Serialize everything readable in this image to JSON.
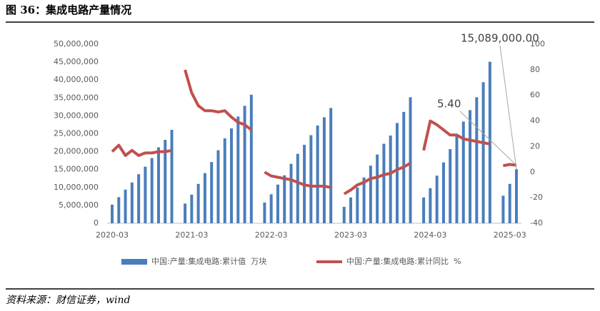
{
  "chart_data": {
    "type": "bar",
    "title": "图 36：集成电路产量情况",
    "source": "资料来源：财信证券，wind",
    "categories": [
      "2020-03",
      null,
      null,
      null,
      null,
      null,
      null,
      null,
      null,
      null,
      null,
      null,
      "2021-03",
      null,
      null,
      null,
      null,
      null,
      null,
      null,
      null,
      null,
      null,
      null,
      "2022-03",
      null,
      null,
      null,
      null,
      null,
      null,
      null,
      null,
      null,
      null,
      null,
      "2023-03",
      null,
      null,
      null,
      null,
      null,
      null,
      null,
      null,
      null,
      null,
      null,
      "2024-03",
      null,
      null,
      null,
      null,
      null,
      null,
      null,
      null,
      null,
      null,
      null,
      "2025-03",
      null
    ],
    "series": [
      {
        "name": "中国:产量:集成电路:累计值  万块",
        "color": "#4a7ebb",
        "type": "bar",
        "values": [
          5200000,
          7300000,
          9400000,
          11400000,
          13700000,
          15800000,
          18200000,
          21200000,
          23300000,
          26100000,
          null,
          5500000,
          8000000,
          11000000,
          14000000,
          17100000,
          20400000,
          23700000,
          26500000,
          29800000,
          32800000,
          35900000,
          null,
          5800000,
          8100000,
          10800000,
          13400000,
          16600000,
          19400000,
          21900000,
          24600000,
          27300000,
          29600000,
          32200000,
          null,
          4600000,
          7200000,
          10000000,
          12800000,
          16100000,
          19200000,
          22200000,
          24500000,
          28000000,
          31100000,
          35200000,
          null,
          7200000,
          9800000,
          13300000,
          17000000,
          20700000,
          24500000,
          28400000,
          31600000,
          35200000,
          39400000,
          45100000,
          null,
          7700000,
          11000000,
          15089000
        ],
        "value_labels": [
          null,
          null,
          null,
          null,
          null,
          null,
          null,
          null,
          null,
          null,
          null,
          null,
          null,
          null,
          null,
          null,
          null,
          null,
          null,
          null,
          null,
          null,
          null,
          null,
          null,
          null,
          null,
          null,
          null,
          null,
          null,
          null,
          null,
          null,
          null,
          null,
          null,
          null,
          null,
          null,
          null,
          null,
          null,
          null,
          null,
          null,
          null,
          null,
          null,
          null,
          null,
          null,
          null,
          null,
          null,
          null,
          null,
          null,
          null,
          null,
          null,
          "15,089,000.00"
        ]
      },
      {
        "name": "中国:产量:集成电路:累计同比  %",
        "color": "#c0504d",
        "type": "line",
        "axis": "y2",
        "values": [
          16,
          21,
          13,
          17,
          13,
          15,
          15,
          16,
          16,
          17,
          null,
          80,
          62,
          52,
          48,
          48,
          47,
          48,
          43,
          39,
          37,
          33,
          null,
          0,
          -3,
          -4,
          -5,
          -6,
          -8,
          -10,
          -11,
          -11,
          -11,
          -12,
          null,
          -17,
          -14,
          -10,
          -8,
          -5,
          -4,
          -2,
          -1,
          2,
          4,
          7,
          null,
          17,
          40,
          37,
          33,
          29,
          29,
          26,
          25,
          24,
          23,
          22,
          null,
          5,
          6,
          5.4
        ],
        "value_labels": [
          null,
          null,
          null,
          null,
          null,
          null,
          null,
          null,
          null,
          null,
          null,
          null,
          null,
          null,
          null,
          null,
          null,
          null,
          null,
          null,
          null,
          null,
          null,
          null,
          null,
          null,
          null,
          null,
          null,
          null,
          null,
          null,
          null,
          null,
          null,
          null,
          null,
          null,
          null,
          null,
          null,
          null,
          null,
          null,
          null,
          null,
          null,
          null,
          null,
          null,
          null,
          null,
          null,
          null,
          null,
          null,
          null,
          null,
          null,
          null,
          null,
          "5.40"
        ]
      }
    ],
    "ylim": [
      0,
      50000000
    ],
    "yticks": [
      0,
      {
        "value": 5000000,
        "label": "5,000,000"
      },
      {
        "value": 10000000,
        "label": "10,000,000"
      },
      {
        "value": 15000000,
        "label": "15,000,000"
      },
      {
        "value": 20000000,
        "label": "20,000,000"
      },
      {
        "value": 25000000,
        "label": "25,000,000"
      },
      {
        "value": 30000000,
        "label": "30,000,000"
      },
      {
        "value": 35000000,
        "label": "35,000,000"
      },
      {
        "value": 40000000,
        "label": "40,000,000"
      },
      {
        "value": 45000000,
        "label": "45,000,000"
      },
      {
        "value": 50000000,
        "label": "50,000,000"
      }
    ],
    "y2lim": [
      -40,
      100
    ],
    "y2ticks": [
      -40,
      -20,
      0,
      20,
      40,
      60,
      80,
      100
    ],
    "grid": false,
    "legend": "bottom"
  }
}
